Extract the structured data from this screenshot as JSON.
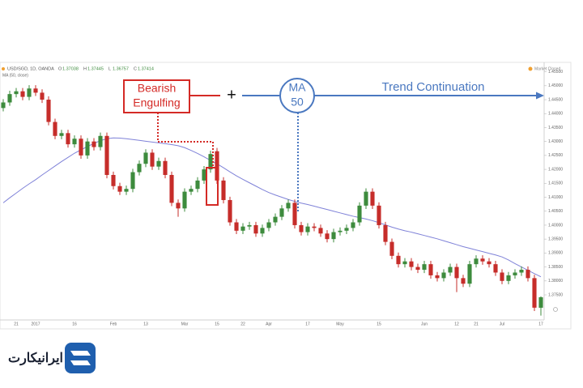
{
  "chart_data": {
    "type": "candlestick",
    "symbol": "USD/SGD, 1D, OANDA",
    "ohlc_letters": [
      "O",
      "H",
      "L",
      "C"
    ],
    "indicator": "MA (50, close)",
    "status": "Market Closed",
    "annotations": {
      "pattern": [
        "Bearish",
        "Engulfing"
      ],
      "plus": "+",
      "ma": [
        "MA",
        "50"
      ],
      "trend": "Trend Continuation"
    },
    "logo": "ایرانیکارت",
    "up_color": "#3d8b3d",
    "down_color": "#c62d2a",
    "ma_color": "#7f82d8",
    "categories": [
      null,
      null,
      "21",
      null,
      null,
      "2017",
      null,
      null,
      null,
      null,
      null,
      "16",
      null,
      null,
      null,
      null,
      null,
      "Feb",
      null,
      null,
      null,
      null,
      "13",
      null,
      null,
      null,
      null,
      null,
      "Mar",
      null,
      null,
      null,
      null,
      "15",
      null,
      null,
      null,
      "22",
      null,
      null,
      null,
      "Apr",
      null,
      null,
      null,
      null,
      null,
      "17",
      null,
      null,
      null,
      null,
      "May",
      null,
      null,
      null,
      null,
      null,
      "15",
      null,
      null,
      null,
      null,
      null,
      null,
      "Jun",
      null,
      null,
      null,
      null,
      "12",
      null,
      null,
      "21",
      null,
      null,
      null,
      "Jul",
      null,
      null,
      null,
      null,
      null,
      "17"
    ],
    "open": [
      1.442,
      1.444,
      1.447,
      1.448,
      1.446,
      1.449,
      1.4475,
      1.445,
      1.437,
      1.432,
      1.433,
      1.429,
      1.431,
      1.425,
      1.43,
      1.428,
      1.432,
      1.418,
      1.414,
      1.412,
      1.413,
      1.419,
      1.422,
      1.426,
      1.421,
      1.423,
      1.418,
      1.408,
      1.406,
      1.412,
      1.413,
      1.416,
      1.42,
      1.4265,
      1.416,
      1.409,
      1.401,
      1.398,
      1.3995,
      1.4,
      1.397,
      1.399,
      1.401,
      1.403,
      1.406,
      1.408,
      1.4,
      1.3975,
      1.3995,
      1.399,
      1.397,
      1.395,
      1.3975,
      1.398,
      1.399,
      1.401,
      1.407,
      1.412,
      1.407,
      1.4,
      1.394,
      1.389,
      1.386,
      1.387,
      1.385,
      1.384,
      1.386,
      1.382,
      1.381,
      1.383,
      1.385,
      1.381,
      1.379,
      1.386,
      1.388,
      1.387,
      1.386,
      1.383,
      1.38,
      1.382,
      1.383,
      1.384,
      1.381,
      1.37038
    ],
    "high": [
      1.4452,
      1.4482,
      1.4492,
      1.4492,
      1.4502,
      1.4502,
      1.4487,
      1.4462,
      1.4382,
      1.4342,
      1.4342,
      1.4322,
      1.4322,
      1.4312,
      1.4312,
      1.4332,
      1.4332,
      1.4192,
      1.4152,
      1.4142,
      1.4202,
      1.4232,
      1.4272,
      1.4272,
      1.4242,
      1.4242,
      1.4192,
      1.4092,
      1.4132,
      1.4142,
      1.4172,
      1.4212,
      1.4267,
      1.4277,
      1.4172,
      1.4102,
      1.4022,
      1.4007,
      1.4012,
      1.4012,
      1.4002,
      1.4022,
      1.4042,
      1.4072,
      1.4092,
      1.4092,
      1.4012,
      1.4007,
      1.4007,
      1.4002,
      1.3982,
      1.3987,
      1.3992,
      1.4002,
      1.4022,
      1.4082,
      1.4132,
      1.4132,
      1.4082,
      1.4012,
      1.3952,
      1.3902,
      1.3882,
      1.3882,
      1.3862,
      1.3872,
      1.3872,
      1.3832,
      1.3842,
      1.3862,
      1.3862,
      1.3822,
      1.3872,
      1.3892,
      1.3892,
      1.3882,
      1.3872,
      1.3842,
      1.3832,
      1.3842,
      1.3852,
      1.3852,
      1.3822,
      1.37445
    ],
    "low": [
      1.4408,
      1.4428,
      1.4458,
      1.4448,
      1.4448,
      1.4463,
      1.4438,
      1.4358,
      1.4308,
      1.4308,
      1.4278,
      1.4278,
      1.4238,
      1.4238,
      1.4268,
      1.4268,
      1.4168,
      1.4128,
      1.4108,
      1.4108,
      1.4118,
      1.4178,
      1.4208,
      1.4198,
      1.4198,
      1.4168,
      1.4068,
      1.403,
      1.4048,
      1.4108,
      1.4118,
      1.4148,
      1.4188,
      1.4148,
      1.4078,
      1.3998,
      1.3968,
      1.3968,
      1.3983,
      1.3958,
      1.3958,
      1.3978,
      1.3998,
      1.4018,
      1.4048,
      1.3988,
      1.3963,
      1.3963,
      1.3978,
      1.3958,
      1.3938,
      1.3938,
      1.3963,
      1.3968,
      1.3978,
      1.3998,
      1.4058,
      1.4058,
      1.3988,
      1.3928,
      1.3878,
      1.3848,
      1.3848,
      1.3838,
      1.3828,
      1.3828,
      1.3808,
      1.3798,
      1.3798,
      1.3818,
      1.376,
      1.3778,
      1.3778,
      1.3848,
      1.3858,
      1.3848,
      1.3818,
      1.3788,
      1.3788,
      1.3808,
      1.3818,
      1.3798,
      1.3692,
      1.36757
    ],
    "close": [
      1.444,
      1.447,
      1.448,
      1.446,
      1.449,
      1.4475,
      1.445,
      1.437,
      1.432,
      1.433,
      1.429,
      1.431,
      1.425,
      1.43,
      1.428,
      1.432,
      1.418,
      1.414,
      1.412,
      1.413,
      1.419,
      1.422,
      1.426,
      1.421,
      1.423,
      1.418,
      1.408,
      1.406,
      1.412,
      1.413,
      1.416,
      1.42,
      1.4255,
      1.416,
      1.409,
      1.401,
      1.398,
      1.3995,
      1.4,
      1.397,
      1.399,
      1.401,
      1.403,
      1.406,
      1.408,
      1.4,
      1.3975,
      1.3995,
      1.399,
      1.397,
      1.395,
      1.3975,
      1.398,
      1.399,
      1.401,
      1.407,
      1.412,
      1.407,
      1.4,
      1.394,
      1.389,
      1.386,
      1.387,
      1.385,
      1.384,
      1.386,
      1.382,
      1.381,
      1.383,
      1.385,
      1.381,
      1.379,
      1.386,
      1.388,
      1.387,
      1.386,
      1.383,
      1.38,
      1.382,
      1.383,
      1.384,
      1.381,
      1.3704,
      1.37414
    ],
    "ma": [
      1.408,
      1.4098,
      1.4115,
      1.4132,
      1.4148,
      1.4163,
      1.418,
      1.4196,
      1.4212,
      1.4228,
      1.4243,
      1.4258,
      1.427,
      1.4282,
      1.4293,
      1.4303,
      1.431,
      1.4313,
      1.4312,
      1.431,
      1.4307,
      1.4304,
      1.4301,
      1.4298,
      1.4295,
      1.4292,
      1.4289,
      1.4285,
      1.4278,
      1.4268,
      1.4257,
      1.4245,
      1.4232,
      1.422,
      1.4206,
      1.4191,
      1.4177,
      1.4164,
      1.4152,
      1.414,
      1.4128,
      1.4117,
      1.4108,
      1.41,
      1.4092,
      1.4085,
      1.4079,
      1.4074,
      1.4068,
      1.4062,
      1.4056,
      1.405,
      1.4044,
      1.4038,
      1.4032,
      1.4027,
      1.4022,
      1.4016,
      1.4009,
      1.4001,
      1.3993,
      1.3986,
      1.398,
      1.3975,
      1.3969,
      1.3963,
      1.3957,
      1.3951,
      1.3944,
      1.3937,
      1.393,
      1.3923,
      1.3917,
      1.3911,
      1.3905,
      1.3899,
      1.3893,
      1.3886,
      1.3875,
      1.3862,
      1.385,
      1.3838,
      1.3826,
      1.3815
    ],
    "ylim": [
      1.366,
      1.4575
    ],
    "yticks": [
      {
        "value": 1.375,
        "label": "1.37500"
      },
      {
        "value": 1.38,
        "label": "1.38000"
      },
      {
        "value": 1.385,
        "label": "1.38500"
      },
      {
        "value": 1.39,
        "label": "1.39000"
      },
      {
        "value": 1.395,
        "label": "1.39500"
      },
      {
        "value": 1.4,
        "label": "1.40000"
      },
      {
        "value": 1.405,
        "label": "1.40500"
      },
      {
        "value": 1.41,
        "label": "1.41000"
      },
      {
        "value": 1.415,
        "label": "1.41500"
      },
      {
        "value": 1.42,
        "label": "1.42000"
      },
      {
        "value": 1.425,
        "label": "1.42500"
      },
      {
        "value": 1.43,
        "label": "1.43000"
      },
      {
        "value": 1.435,
        "label": "1.43500"
      },
      {
        "value": 1.44,
        "label": "1.44000"
      },
      {
        "value": 1.445,
        "label": "1.44500"
      },
      {
        "value": 1.45,
        "label": "1.45000"
      },
      {
        "value": 1.455,
        "label": "1.45500"
      }
    ]
  }
}
